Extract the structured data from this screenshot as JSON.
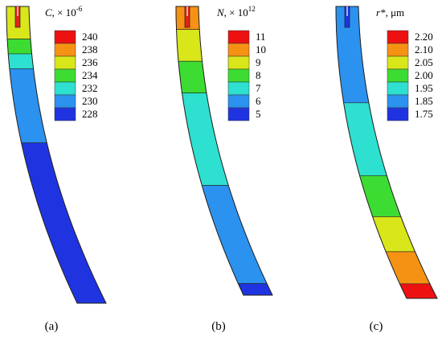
{
  "panels": [
    {
      "caption": "(a)",
      "title_var": "C",
      "title_rest": ", × 10",
      "title_sup": "-6",
      "levels": [
        "240",
        "238",
        "236",
        "234",
        "232",
        "230",
        "228"
      ],
      "colors": [
        "#ee1111",
        "#f59214",
        "#d9e61a",
        "#3ddc32",
        "#2ee0cf",
        "#2b92f0",
        "#1f34e0"
      ],
      "pipe_color": "#e0241c",
      "slice_colors": [
        "#d9e61a",
        "#3ddc32",
        "#2ee0cf",
        "#2b92f0",
        "#1f34e0"
      ]
    },
    {
      "caption": "(b)",
      "title_var": "N",
      "title_rest": ", × 10",
      "title_sup": "12",
      "levels": [
        "11",
        "10",
        "9",
        "8",
        "7",
        "6",
        "5"
      ],
      "colors": [
        "#ee1111",
        "#f59214",
        "#d9e61a",
        "#3ddc32",
        "#2ee0cf",
        "#2b92f0",
        "#1f34e0"
      ],
      "pipe_color": "#e0241c",
      "slice_colors": [
        "#f59214",
        "#d9e61a",
        "#3ddc32",
        "#2ee0cf",
        "#2b92f0",
        "#1f34e0"
      ]
    },
    {
      "caption": "(c)",
      "title_var": "r*",
      "title_rest": ", μm",
      "title_sup": "",
      "levels": [
        "2.20",
        "2.10",
        "2.05",
        "2.00",
        "1.95",
        "1.85",
        "1.75"
      ],
      "colors": [
        "#ee1111",
        "#f59214",
        "#d9e61a",
        "#3ddc32",
        "#2ee0cf",
        "#2b92f0",
        "#1f34e0"
      ],
      "pipe_color": "#1f34e0",
      "slice_colors": [
        "#2b92f0",
        "#2ee0cf",
        "#3ddc32",
        "#d9e61a",
        "#f59214",
        "#ee1111"
      ]
    }
  ]
}
